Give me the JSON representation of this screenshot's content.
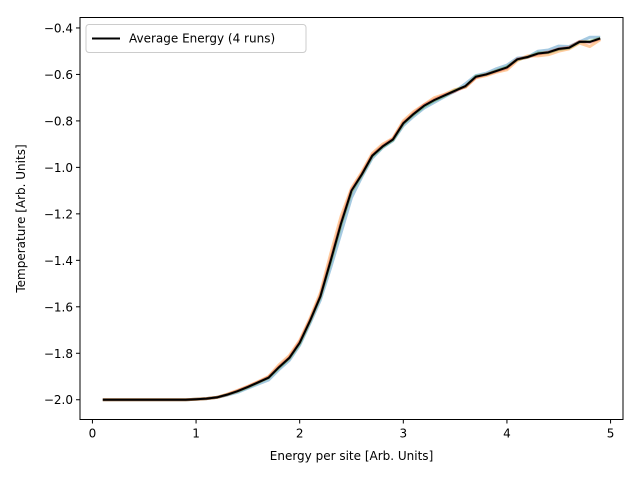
{
  "chart_data": {
    "type": "line",
    "xlabel": "Energy per site [Arb. Units]",
    "ylabel": "Temperature [Arb. Units]",
    "xlim": [
      -0.12,
      5.12
    ],
    "ylim": [
      -2.085,
      -0.355
    ],
    "xticks": [
      0,
      1,
      2,
      3,
      4,
      5
    ],
    "yticks": [
      -2.0,
      -1.8,
      -1.6,
      -1.4,
      -1.2,
      -1.0,
      -0.8,
      -0.6,
      -0.4
    ],
    "ytick_labels": [
      "−2.0",
      "−1.8",
      "−1.6",
      "−1.4",
      "−1.2",
      "−1.0",
      "−0.8",
      "−0.6",
      "−0.4"
    ],
    "grid": false,
    "legend_position": "top-left",
    "legend": [
      "Average Energy (4 runs)"
    ],
    "x": [
      0.1,
      0.2,
      0.3,
      0.4,
      0.5,
      0.6,
      0.7,
      0.8,
      0.9,
      1.0,
      1.1,
      1.2,
      1.3,
      1.4,
      1.5,
      1.6,
      1.7,
      1.8,
      1.9,
      2.0,
      2.1,
      2.2,
      2.3,
      2.4,
      2.5,
      2.6,
      2.7,
      2.8,
      2.9,
      3.0,
      3.1,
      3.2,
      3.3,
      3.4,
      3.5,
      3.6,
      3.7,
      3.8,
      3.9,
      4.0,
      4.1,
      4.2,
      4.3,
      4.4,
      4.5,
      4.6,
      4.7,
      4.8,
      4.9
    ],
    "series": [
      {
        "name": "Average Energy (4 runs)",
        "color": "#000000",
        "values": [
          -2.0,
          -2.0,
          -2.0,
          -2.0,
          -2.0,
          -2.0,
          -2.0,
          -2.0,
          -2.0,
          -1.998,
          -1.995,
          -1.99,
          -1.978,
          -1.963,
          -1.945,
          -1.925,
          -1.905,
          -1.86,
          -1.82,
          -1.755,
          -1.66,
          -1.555,
          -1.4,
          -1.24,
          -1.1,
          -1.03,
          -0.95,
          -0.91,
          -0.88,
          -0.81,
          -0.77,
          -0.735,
          -0.71,
          -0.69,
          -0.67,
          -0.65,
          -0.61,
          -0.6,
          -0.585,
          -0.57,
          -0.535,
          -0.525,
          -0.51,
          -0.505,
          -0.49,
          -0.485,
          -0.46,
          -0.46,
          -0.445
        ]
      },
      {
        "name": "",
        "color": "#1f77b4",
        "values": [
          -2.0,
          -2.0,
          -2.0,
          -2.0,
          -2.0,
          -2.0,
          -2.0,
          -2.0,
          -2.0,
          -1.998,
          -1.995,
          -1.99,
          -1.98,
          -1.968,
          -1.95,
          -1.932,
          -1.915,
          -1.87,
          -1.83,
          -1.765,
          -1.67,
          -1.57,
          -1.43,
          -1.28,
          -1.13,
          -1.04,
          -0.96,
          -0.915,
          -0.885,
          -0.82,
          -0.78,
          -0.745,
          -0.72,
          -0.695,
          -0.672,
          -0.64,
          -0.605,
          -0.595,
          -0.575,
          -0.56,
          -0.53,
          -0.525,
          -0.5,
          -0.495,
          -0.478,
          -0.48,
          -0.46,
          -0.44,
          -0.44
        ]
      },
      {
        "name": "",
        "color": "#ff7f0e",
        "values": [
          -2.0,
          -2.0,
          -2.0,
          -2.0,
          -2.0,
          -2.0,
          -2.0,
          -2.0,
          -2.0,
          -1.998,
          -1.995,
          -1.99,
          -1.976,
          -1.96,
          -1.942,
          -1.922,
          -1.9,
          -1.85,
          -1.81,
          -1.745,
          -1.65,
          -1.54,
          -1.37,
          -1.21,
          -1.09,
          -1.02,
          -0.94,
          -0.9,
          -0.875,
          -0.8,
          -0.76,
          -0.73,
          -0.7,
          -0.685,
          -0.665,
          -0.655,
          -0.615,
          -0.605,
          -0.59,
          -0.58,
          -0.54,
          -0.52,
          -0.52,
          -0.515,
          -0.5,
          -0.49,
          -0.465,
          -0.48,
          -0.45
        ]
      },
      {
        "name": "",
        "color": "#2ca02c",
        "values": [
          -2.0,
          -2.0,
          -2.0,
          -2.0,
          -2.0,
          -2.0,
          -2.0,
          -2.0,
          -2.0,
          -1.998,
          -1.995,
          -1.99,
          -1.978,
          -1.964,
          -1.946,
          -1.926,
          -1.905,
          -1.862,
          -1.822,
          -1.758,
          -1.662,
          -1.557,
          -1.405,
          -1.245,
          -1.105,
          -1.032,
          -0.952,
          -0.912,
          -0.882,
          -0.812,
          -0.772,
          -0.738,
          -0.712,
          -0.692,
          -0.668,
          -0.652,
          -0.608,
          -0.6,
          -0.584,
          -0.568,
          -0.536,
          -0.526,
          -0.508,
          -0.506,
          -0.492,
          -0.486,
          -0.46,
          -0.458,
          -0.444
        ]
      },
      {
        "name": "",
        "color": "#d62728",
        "values": [
          -2.0,
          -2.0,
          -2.0,
          -2.0,
          -2.0,
          -2.0,
          -2.0,
          -2.0,
          -2.0,
          -1.998,
          -1.995,
          -1.99,
          -1.978,
          -1.962,
          -1.944,
          -1.924,
          -1.903,
          -1.858,
          -1.818,
          -1.752,
          -1.658,
          -1.552,
          -1.395,
          -1.235,
          -1.098,
          -1.028,
          -0.948,
          -0.908,
          -0.878,
          -0.808,
          -0.768,
          -0.732,
          -0.708,
          -0.688,
          -0.672,
          -0.652,
          -0.612,
          -0.6,
          -0.586,
          -0.572,
          -0.534,
          -0.526,
          -0.512,
          -0.504,
          -0.49,
          -0.484,
          -0.458,
          -0.462,
          -0.446
        ]
      }
    ]
  }
}
